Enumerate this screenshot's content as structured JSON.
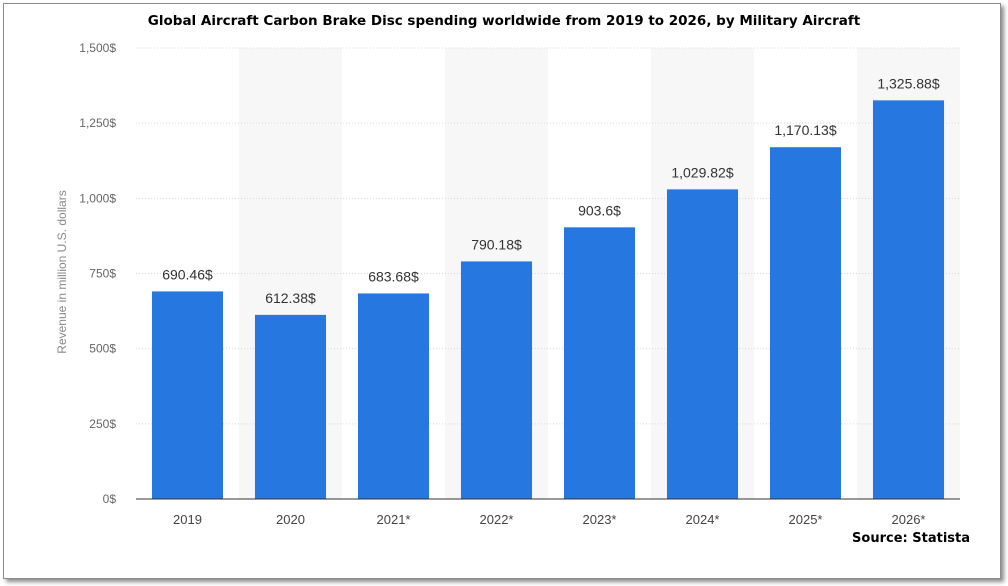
{
  "chart_data": {
    "type": "bar",
    "title": "Global Aircraft Carbon Brake Disc spending worldwide from 2019 to 2026, by Military Aircraft",
    "xlabel": "",
    "ylabel": "Revenue in million U.S. dollars",
    "categories": [
      "2019",
      "2020",
      "2021*",
      "2022*",
      "2023*",
      "2024*",
      "2025*",
      "2026*"
    ],
    "values": [
      690.46,
      612.38,
      683.68,
      790.18,
      903.6,
      1029.82,
      1170.13,
      1325.88
    ],
    "value_labels": [
      "690.46$",
      "612.38$",
      "683.68$",
      "790.18$",
      "903.6$",
      "1,029.82$",
      "1,170.13$",
      "1,325.88$"
    ],
    "ylim": [
      0,
      1500
    ],
    "yticks": [
      0,
      250,
      500,
      750,
      1000,
      1250,
      1500
    ],
    "ytick_labels": [
      "0$",
      "250$",
      "500$",
      "750$",
      "1,000$",
      "1,250$",
      "1,500$"
    ],
    "grid": true,
    "legend": "none",
    "bar_color": "#2777e0",
    "source": "Source: Statista"
  }
}
